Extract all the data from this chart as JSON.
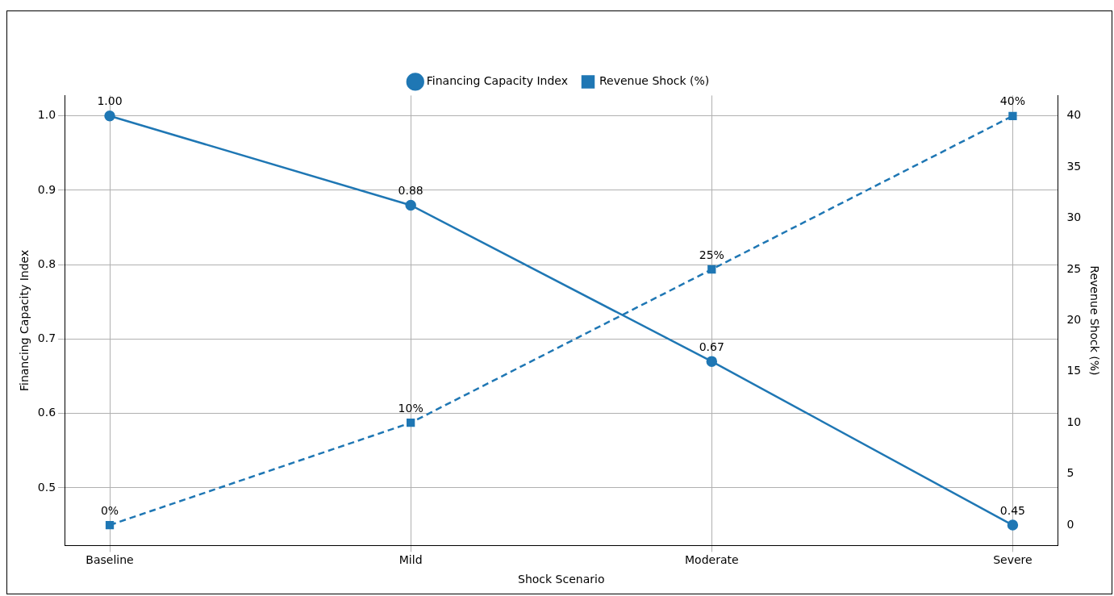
{
  "chart_data": {
    "type": "line",
    "xlabel": "Shock Scenario",
    "ylabel": "Financing Capacity Index",
    "y2label": "Revenue Shock (%)",
    "categories": [
      "Baseline",
      "Mild",
      "Moderate",
      "Severe"
    ],
    "series": [
      {
        "name": "Financing Capacity Index",
        "color": "#1f77b4",
        "values": [
          1.0,
          0.88,
          0.67,
          0.45
        ],
        "value_labels": [
          "1.00",
          "0.88",
          "0.67",
          "0.45"
        ],
        "marker": "circle",
        "line_style": "solid"
      },
      {
        "name": "Revenue Shock (%)",
        "color": "#1f77b4",
        "values": [
          0,
          10,
          25,
          40
        ],
        "value_labels": [
          "0%",
          "10%",
          "25%",
          "40%"
        ],
        "marker": "square",
        "line_style": "dashed",
        "axis": "y2"
      }
    ],
    "ylim": [
      0.4225,
      1.0275
    ],
    "yticks": [
      0.5,
      0.6,
      0.7,
      0.8,
      0.9,
      {
        "value": 1.0,
        "label": "1.0"
      }
    ],
    "y2lim": [
      -2,
      42
    ],
    "y2ticks": [
      0,
      5,
      10,
      15,
      20,
      25,
      30,
      35,
      40
    ],
    "grid": true,
    "legend": "top"
  }
}
